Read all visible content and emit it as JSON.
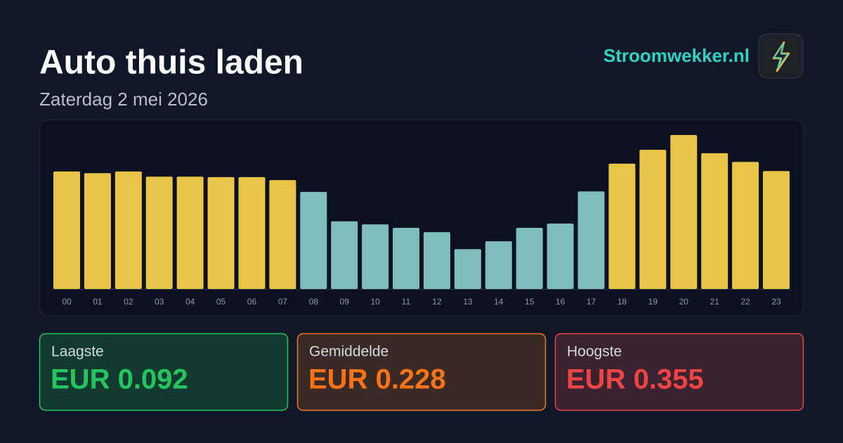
{
  "chart_data": {
    "type": "bar",
    "title": "Auto thuis laden",
    "subtitle": "Zaterdag 2 mei 2026",
    "categories": [
      "00",
      "01",
      "02",
      "03",
      "04",
      "05",
      "06",
      "07",
      "08",
      "09",
      "10",
      "11",
      "12",
      "13",
      "14",
      "15",
      "16",
      "17",
      "18",
      "19",
      "20",
      "21",
      "22",
      "23"
    ],
    "values": [
      0.271,
      0.267,
      0.271,
      0.259,
      0.259,
      0.258,
      0.258,
      0.251,
      0.224,
      0.156,
      0.149,
      0.141,
      0.131,
      0.092,
      0.11,
      0.141,
      0.151,
      0.225,
      0.289,
      0.321,
      0.355,
      0.313,
      0.293,
      0.272
    ],
    "colors": [
      "#e8c547",
      "#e8c547",
      "#e8c547",
      "#e8c547",
      "#e8c547",
      "#e8c547",
      "#e8c547",
      "#e8c547",
      "#7fbcbd",
      "#7fbcbd",
      "#7fbcbd",
      "#7fbcbd",
      "#7fbcbd",
      "#7fbcbd",
      "#7fbcbd",
      "#7fbcbd",
      "#7fbcbd",
      "#7fbcbd",
      "#e8c547",
      "#e8c547",
      "#e8c547",
      "#e8c547",
      "#e8c547",
      "#e8c547"
    ]
  },
  "brand": "Stroomwekker.nl",
  "stats": [
    {
      "label": "Laagste",
      "value": "EUR 0.092"
    },
    {
      "label": "Gemiddelde",
      "value": "EUR 0.228"
    },
    {
      "label": "Hoogste",
      "value": "EUR 0.355"
    }
  ]
}
